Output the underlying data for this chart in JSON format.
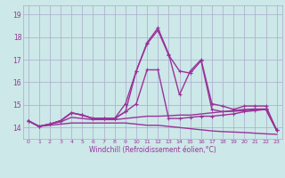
{
  "xlabel": "Windchill (Refroidissement éolien,°C)",
  "background_color": "#cce8e8",
  "grid_color": "#aaaacc",
  "line_color": "#993399",
  "ylim": [
    13.5,
    19.4
  ],
  "xlim": [
    -0.5,
    23.5
  ],
  "yticks": [
    14,
    15,
    16,
    17,
    18,
    19
  ],
  "xticks": [
    0,
    1,
    2,
    3,
    4,
    5,
    6,
    7,
    8,
    9,
    10,
    11,
    12,
    13,
    14,
    15,
    16,
    17,
    18,
    19,
    20,
    21,
    22,
    23
  ],
  "series": [
    {
      "y": [
        14.3,
        14.05,
        14.1,
        14.15,
        14.2,
        14.2,
        14.2,
        14.2,
        14.2,
        14.2,
        14.15,
        14.1,
        14.1,
        14.05,
        14.0,
        13.95,
        13.9,
        13.85,
        13.82,
        13.8,
        13.78,
        13.75,
        13.72,
        13.7
      ],
      "marker": null,
      "lw": 1.0
    },
    {
      "y": [
        14.3,
        14.05,
        14.15,
        14.25,
        14.45,
        14.4,
        14.35,
        14.35,
        14.35,
        14.4,
        14.45,
        14.5,
        14.5,
        14.52,
        14.55,
        14.55,
        14.6,
        14.65,
        14.7,
        14.72,
        14.75,
        14.78,
        14.8,
        13.85
      ],
      "marker": null,
      "lw": 1.0
    },
    {
      "y": [
        14.3,
        14.05,
        14.15,
        14.3,
        14.65,
        14.55,
        14.4,
        14.4,
        14.4,
        14.7,
        15.05,
        16.55,
        16.55,
        14.4,
        14.4,
        14.45,
        14.5,
        14.5,
        14.55,
        14.6,
        14.7,
        14.75,
        14.8,
        13.88
      ],
      "marker": "+",
      "lw": 1.0
    },
    {
      "y": [
        14.3,
        14.05,
        14.15,
        14.3,
        14.65,
        14.55,
        14.4,
        14.4,
        14.4,
        14.7,
        16.5,
        17.7,
        18.3,
        17.2,
        16.5,
        16.4,
        16.95,
        14.8,
        14.7,
        14.75,
        14.8,
        14.82,
        14.82,
        13.88
      ],
      "marker": "+",
      "lw": 1.0
    },
    {
      "y": [
        14.3,
        14.05,
        14.15,
        14.3,
        14.65,
        14.55,
        14.4,
        14.4,
        14.4,
        15.05,
        16.5,
        17.75,
        18.4,
        17.25,
        15.45,
        16.5,
        17.0,
        15.05,
        14.95,
        14.8,
        14.95,
        14.95,
        14.95,
        13.88
      ],
      "marker": "+",
      "lw": 1.0
    }
  ]
}
